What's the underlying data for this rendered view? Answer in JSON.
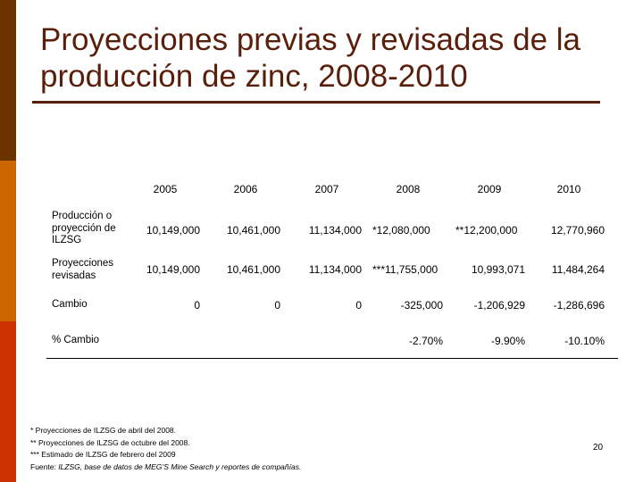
{
  "slide": {
    "title_line1": "Proyecciones previas y revisadas de la",
    "title_line2": "producción de zinc, 2008-2010",
    "page_number": "20",
    "accent_colors": [
      "#6b3300",
      "#cc6600",
      "#cc3300"
    ],
    "title_color": "#5a1f0a"
  },
  "table": {
    "years": [
      "2005",
      "2006",
      "2007",
      "2008",
      "2009",
      "2010"
    ],
    "rows": [
      {
        "label": "Producción o proyección de ILZSG",
        "values": [
          "10,149,000",
          "10,461,000",
          "11,134,000",
          "*12,080,000",
          "**12,200,000",
          "12,770,960"
        ]
      },
      {
        "label": "Proyecciones revisadas",
        "values": [
          "10,149,000",
          "10,461,000",
          "11,134,000",
          "***11,755,000",
          "10,993,071",
          "11,484,264"
        ]
      },
      {
        "label": "Cambio",
        "values": [
          "0",
          "0",
          "0",
          "-325,000",
          "-1,206,929",
          "-1,286,696"
        ]
      },
      {
        "label": "% Cambio",
        "values": [
          "",
          "",
          "",
          "-2.70%",
          "-9.90%",
          "-10.10%"
        ]
      }
    ]
  },
  "notes": {
    "note1": "* Proyecciones de ILZSG de abril del 2008.",
    "note2": "** Proyecciones de ILZSG de octubre del 2008.",
    "note3": "*** Estimado de ILZSG de febrero del 2009",
    "source_prefix": "Fuente: ",
    "source_text": "ILZSG, base de datos de MEG’S Mine Search y reportes de compañías."
  }
}
